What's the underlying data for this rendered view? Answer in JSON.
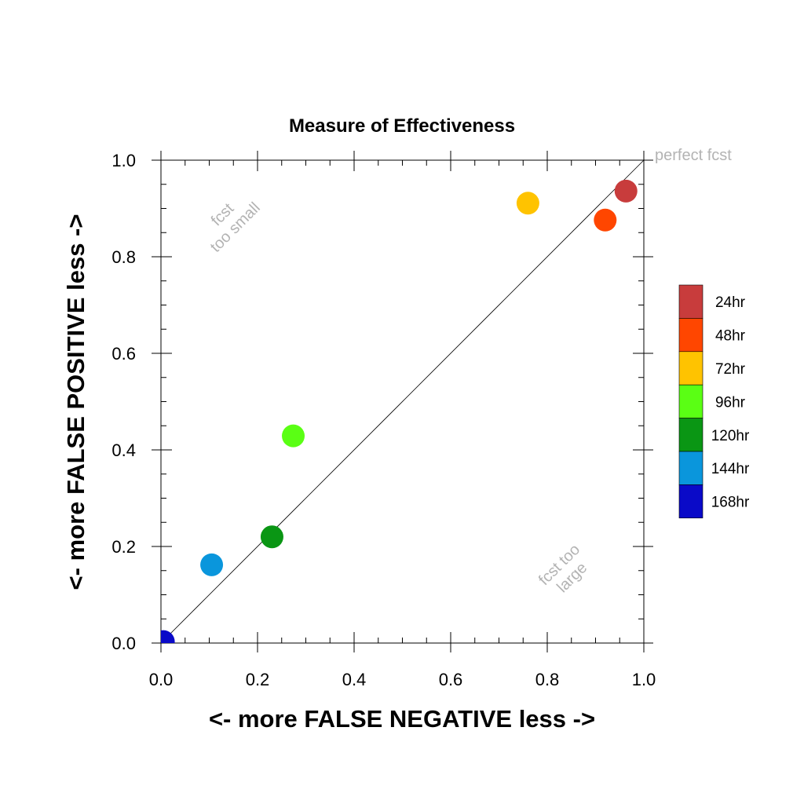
{
  "chart_data": {
    "type": "scatter",
    "title": "Measure of Effectiveness",
    "xlabel": "<- more   FALSE NEGATIVE   less ->",
    "ylabel": "<- more   FALSE POSITIVE   less ->",
    "xlim": [
      0.0,
      1.0
    ],
    "ylim": [
      0.0,
      1.0
    ],
    "x_ticks": [
      "0.0",
      "0.2",
      "0.4",
      "0.6",
      "0.8",
      "1.0"
    ],
    "y_ticks": [
      "0.0",
      "0.2",
      "0.4",
      "0.6",
      "0.8",
      "1.0"
    ],
    "grid": false,
    "legend_position": "right",
    "annotations": {
      "perfect": "perfect fcst",
      "small_line1": "fcst",
      "small_line2": "too small",
      "large_line1": "fcst too",
      "large_line2": "large"
    },
    "series": [
      {
        "name": "168hr",
        "color": "#0a0ac8",
        "x": 0.005,
        "y": 0.003
      },
      {
        "name": "144hr",
        "color": "#0a96dc",
        "x": 0.105,
        "y": 0.162
      },
      {
        "name": "120hr",
        "color": "#0a9614",
        "x": 0.23,
        "y": 0.22
      },
      {
        "name": "96hr",
        "color": "#5aff14",
        "x": 0.274,
        "y": 0.429
      },
      {
        "name": "72hr",
        "color": "#ffc300",
        "x": 0.76,
        "y": 0.911
      },
      {
        "name": "48hr",
        "color": "#ff4600",
        "x": 0.92,
        "y": 0.876
      },
      {
        "name": "24hr",
        "color": "#c83c3c",
        "x": 0.963,
        "y": 0.936
      }
    ]
  }
}
